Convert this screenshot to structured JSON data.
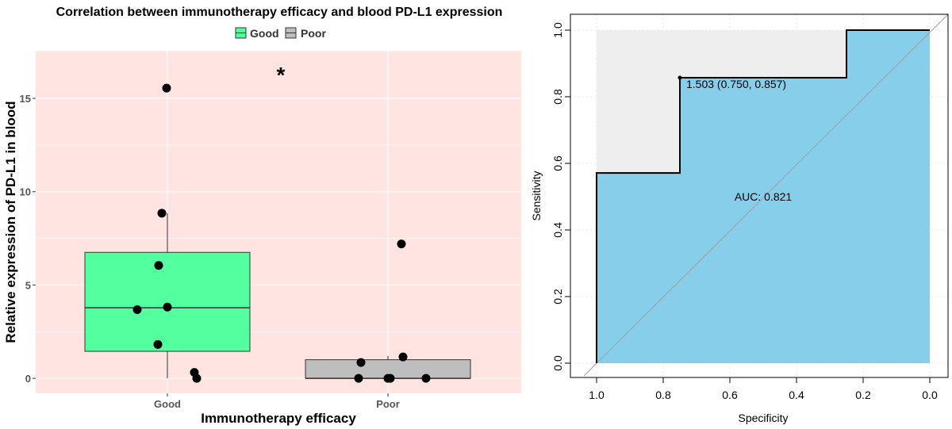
{
  "chart_data": [
    {
      "type": "box",
      "title": "Correlation between immunotherapy efficacy and blood PD-L1 expression",
      "xlabel": "Immunotherapy efficacy",
      "ylabel": "Relative expression of PD-L1 in blood",
      "categories": [
        "Good",
        "Poor"
      ],
      "ylim": [
        -0.8,
        18
      ],
      "yticks": [
        0,
        5,
        10,
        15
      ],
      "legend": {
        "position": "top",
        "entries": [
          {
            "name": "Good",
            "color": "#54FF9F"
          },
          {
            "name": "Poor",
            "color": "#BEBEBE"
          }
        ]
      },
      "panel_color": "#FFE4E1",
      "significance": "*",
      "boxes": [
        {
          "name": "Good",
          "whisker_low": 0,
          "q1": 1.45,
          "median": 3.78,
          "q3": 6.75,
          "whisker_high": 8.85,
          "color": "#54FF9F"
        },
        {
          "name": "Poor",
          "whisker_low": 0,
          "q1": 0,
          "median": 0,
          "q3": 1.0,
          "whisker_high": 1.2,
          "color": "#BEBEBE"
        }
      ],
      "points": [
        {
          "group": "Good",
          "y": 15.55,
          "jitter": -0.01
        },
        {
          "group": "Good",
          "y": 8.85,
          "jitter": -0.07
        },
        {
          "group": "Good",
          "y": 6.05,
          "jitter": -0.11
        },
        {
          "group": "Good",
          "y": 3.82,
          "jitter": 0.0
        },
        {
          "group": "Good",
          "y": 3.68,
          "jitter": -0.38
        },
        {
          "group": "Good",
          "y": 1.82,
          "jitter": -0.12
        },
        {
          "group": "Good",
          "y": 0.32,
          "jitter": 0.34
        },
        {
          "group": "Good",
          "y": 0.0,
          "jitter": 0.37
        },
        {
          "group": "Poor",
          "y": 7.2,
          "jitter": 0.17
        },
        {
          "group": "Poor",
          "y": 1.15,
          "jitter": 0.19
        },
        {
          "group": "Poor",
          "y": 0.85,
          "jitter": -0.34
        },
        {
          "group": "Poor",
          "y": 0.0,
          "jitter": -0.37
        },
        {
          "group": "Poor",
          "y": 0.0,
          "jitter": 0.0
        },
        {
          "group": "Poor",
          "y": 0.0,
          "jitter": 0.03
        },
        {
          "group": "Poor",
          "y": 0.0,
          "jitter": 0.48
        }
      ]
    },
    {
      "type": "line",
      "subtype": "roc",
      "xlabel": "Specificity",
      "ylabel": "Sensitivity",
      "x_reversed": true,
      "xlim": [
        1.0,
        0.0
      ],
      "ylim": [
        0.0,
        1.0
      ],
      "xticks": [
        "1.0",
        "0.8",
        "0.6",
        "0.4",
        "0.2",
        "0.0"
      ],
      "yticks": [
        "0.0",
        "0.2",
        "0.4",
        "0.6",
        "0.8",
        "1.0"
      ],
      "grid": true,
      "auc_fill": "#87CEEB",
      "ci_fill": "#EEEEEE",
      "curve": [
        {
          "specificity": 1.0,
          "sensitivity": 0.0
        },
        {
          "specificity": 1.0,
          "sensitivity": 0.571
        },
        {
          "specificity": 0.75,
          "sensitivity": 0.571
        },
        {
          "specificity": 0.75,
          "sensitivity": 0.857
        },
        {
          "specificity": 0.25,
          "sensitivity": 0.857
        },
        {
          "specificity": 0.25,
          "sensitivity": 1.0
        },
        {
          "specificity": 0.0,
          "sensitivity": 1.0
        }
      ],
      "best_point": {
        "specificity": 0.75,
        "sensitivity": 0.857
      },
      "best_label": "1.503 (0.750, 0.857)",
      "auc_label": "AUC: 0.821"
    }
  ]
}
